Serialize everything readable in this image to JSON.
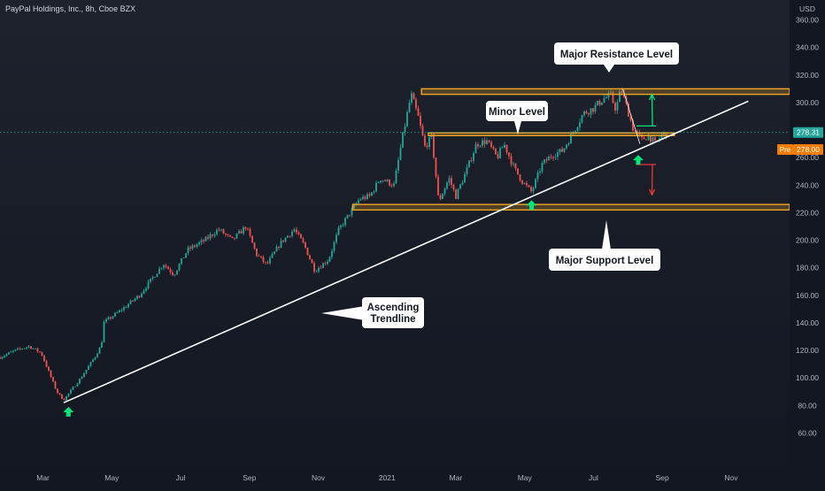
{
  "header": {
    "symbol_title": "PayPal Holdings, Inc., 8h, Cboe BZX",
    "currency": "USD"
  },
  "price_tags": {
    "last_price": "278.31",
    "pre_label": "Pre",
    "pre_price": "278.00"
  },
  "callouts": {
    "major_resistance": "Major Resistance Level",
    "minor_level": "Minor Level",
    "major_support": "Major Support Level",
    "trendline_line1": "Ascending",
    "trendline_line2": "Trendline"
  },
  "colors": {
    "background": "#131722",
    "up_candle": "#26a69a",
    "down_candle": "#ef5350",
    "level_band": "#f5a623",
    "trendline": "#ffffff",
    "arrow_up": "#00e676",
    "arrow_down": "#e53935",
    "last_price_tag": "#26a69a",
    "pre_price_tag": "#f57c00"
  },
  "chart_data": {
    "type": "candlestick",
    "title": "PayPal Holdings, Inc., 8h, Cboe BZX",
    "ylabel": "USD",
    "ylim": [
      50,
      370
    ],
    "y_ticks": [
      60,
      80,
      100,
      120,
      140,
      160,
      180,
      200,
      220,
      240,
      260,
      280,
      300,
      320,
      340,
      360
    ],
    "y_tick_labels": [
      "60.00",
      "80.00",
      "100.00",
      "120.00",
      "140.00",
      "160.00",
      "180.00",
      "200.00",
      "220.00",
      "240.00",
      "260.00",
      "280.00",
      "300.00",
      "320.00",
      "340.00",
      "360.00"
    ],
    "x_tick_labels": [
      "Mar",
      "May",
      "Jul",
      "Sep",
      "Nov",
      "2021",
      "Mar",
      "May",
      "Jul",
      "Sep",
      "Nov"
    ],
    "x_ticks_month_index": [
      2,
      4,
      6,
      8,
      10,
      12,
      14,
      16,
      18,
      20,
      22
    ],
    "xlim_month_index": [
      0.75,
      23.7
    ],
    "price_anchors": [
      {
        "t": 0.75,
        "p": 115
      },
      {
        "t": 1.2,
        "p": 120
      },
      {
        "t": 1.6,
        "p": 123
      },
      {
        "t": 1.95,
        "p": 118
      },
      {
        "t": 2.4,
        "p": 90
      },
      {
        "t": 2.6,
        "p": 84
      },
      {
        "t": 3.1,
        "p": 100
      },
      {
        "t": 3.5,
        "p": 115
      },
      {
        "t": 3.7,
        "p": 124
      },
      {
        "t": 3.75,
        "p": 140
      },
      {
        "t": 4.2,
        "p": 148
      },
      {
        "t": 4.8,
        "p": 160
      },
      {
        "t": 5.5,
        "p": 183
      },
      {
        "t": 5.8,
        "p": 175
      },
      {
        "t": 6.2,
        "p": 193
      },
      {
        "t": 6.7,
        "p": 200
      },
      {
        "t": 7.1,
        "p": 208
      },
      {
        "t": 7.5,
        "p": 200
      },
      {
        "t": 7.9,
        "p": 210
      },
      {
        "t": 8.2,
        "p": 190
      },
      {
        "t": 8.5,
        "p": 182
      },
      {
        "t": 8.9,
        "p": 198
      },
      {
        "t": 9.3,
        "p": 208
      },
      {
        "t": 9.6,
        "p": 196
      },
      {
        "t": 9.9,
        "p": 178
      },
      {
        "t": 10.3,
        "p": 186
      },
      {
        "t": 10.6,
        "p": 208
      },
      {
        "t": 11.2,
        "p": 230
      },
      {
        "t": 11.5,
        "p": 232
      },
      {
        "t": 11.8,
        "p": 245
      },
      {
        "t": 12.2,
        "p": 240
      },
      {
        "t": 12.45,
        "p": 275
      },
      {
        "t": 12.7,
        "p": 306
      },
      {
        "t": 12.9,
        "p": 290
      },
      {
        "t": 13.1,
        "p": 268
      },
      {
        "t": 13.3,
        "p": 275
      },
      {
        "t": 13.5,
        "p": 228
      },
      {
        "t": 13.8,
        "p": 245
      },
      {
        "t": 14.0,
        "p": 232
      },
      {
        "t": 14.3,
        "p": 250
      },
      {
        "t": 14.6,
        "p": 270
      },
      {
        "t": 14.9,
        "p": 272
      },
      {
        "t": 15.2,
        "p": 260
      },
      {
        "t": 15.4,
        "p": 270
      },
      {
        "t": 15.7,
        "p": 252
      },
      {
        "t": 15.95,
        "p": 242
      },
      {
        "t": 16.2,
        "p": 235
      },
      {
        "t": 16.5,
        "p": 255
      },
      {
        "t": 16.8,
        "p": 262
      },
      {
        "t": 17.1,
        "p": 265
      },
      {
        "t": 17.4,
        "p": 278
      },
      {
        "t": 17.7,
        "p": 292
      },
      {
        "t": 18.0,
        "p": 296
      },
      {
        "t": 18.3,
        "p": 303
      },
      {
        "t": 18.5,
        "p": 305
      },
      {
        "t": 18.65,
        "p": 295
      },
      {
        "t": 18.8,
        "p": 310
      },
      {
        "t": 19.0,
        "p": 294
      },
      {
        "t": 19.15,
        "p": 281
      },
      {
        "t": 19.4,
        "p": 273
      },
      {
        "t": 19.6,
        "p": 276
      },
      {
        "t": 19.8,
        "p": 270
      },
      {
        "t": 20.0,
        "p": 277
      },
      {
        "t": 20.15,
        "p": 278
      }
    ],
    "levels": [
      {
        "name": "Major Resistance Level",
        "low": 306,
        "high": 310,
        "t_start": 13.0,
        "t_end": 23.7
      },
      {
        "name": "Minor Level",
        "low": 276,
        "high": 278,
        "t_start": 13.2,
        "t_end": 20.35
      },
      {
        "name": "Major Support Level",
        "low": 222,
        "high": 226,
        "t_start": 11.0,
        "t_end": 23.7
      }
    ],
    "trendline": {
      "name": "Ascending Trendline",
      "t1": 2.6,
      "p1": 82,
      "t2": 22.5,
      "p2": 301
    },
    "reference_line": {
      "price": 278.31,
      "style": "dotted"
    },
    "projection_up": {
      "t_start": 19.25,
      "p_start": 283,
      "t_end": 19.7,
      "p_end": 306
    },
    "projection_down": {
      "t_start": 19.25,
      "p_start": 255,
      "t_end": 19.7,
      "p_end": 233
    },
    "resistance_drop_line": {
      "t1": 18.85,
      "p1": 310,
      "t2": 19.35,
      "p2": 270
    },
    "bounce_markers": [
      {
        "t": 2.74,
        "p": 79
      },
      {
        "t": 16.2,
        "p": 229
      },
      {
        "t": 19.3,
        "p": 262
      }
    ],
    "grid": false
  }
}
